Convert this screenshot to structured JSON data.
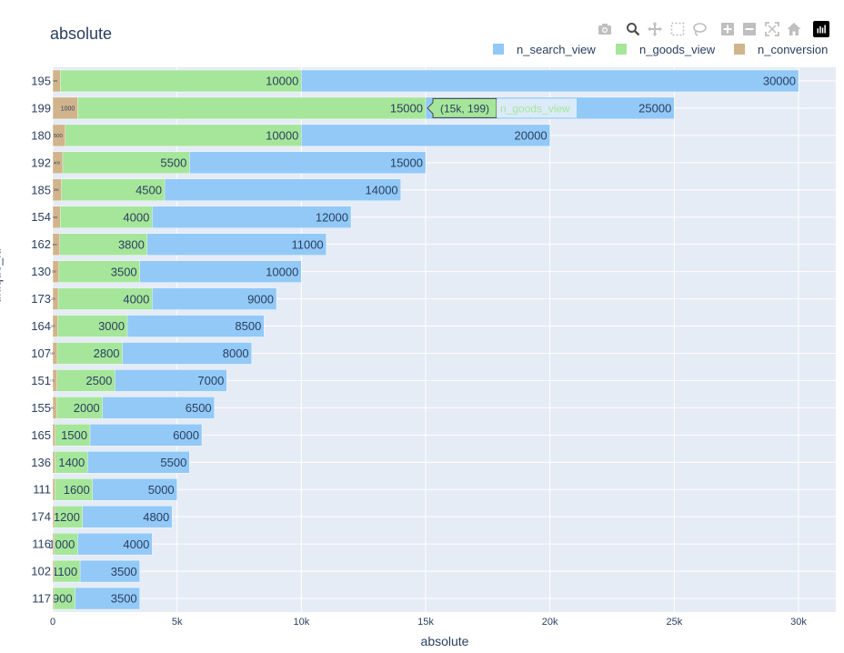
{
  "title": "absolute",
  "toolbar": {
    "icons": [
      "camera-icon",
      "zoom-icon",
      "pan-icon",
      "box-select-icon",
      "lasso-icon",
      "zoom-in-icon",
      "zoom-out-icon",
      "autoscale-icon",
      "reset-axes-icon",
      "plotly-logo-icon"
    ]
  },
  "legend": [
    {
      "name": "n_search_view",
      "color": "#92c9f7"
    },
    {
      "name": "n_goods_view",
      "color": "#a6e69a"
    },
    {
      "name": "n_conversion",
      "color": "#d2b48c"
    }
  ],
  "tooltip": {
    "text": "(15k, 199)",
    "series": "n_goods_view"
  },
  "chart_data": {
    "type": "bar",
    "orientation": "horizontal",
    "barmode": "overlay",
    "title": "absolute",
    "xlabel": "absolute",
    "ylabel": "unique_id",
    "xlim": [
      0,
      31500
    ],
    "xticks": [
      0,
      5000,
      10000,
      15000,
      20000,
      25000,
      30000
    ],
    "xticklabels": [
      "0",
      "5k",
      "10k",
      "15k",
      "20k",
      "25k",
      "30k"
    ],
    "categories": [
      "195",
      "199",
      "180",
      "192",
      "185",
      "154",
      "162",
      "130",
      "173",
      "164",
      "107",
      "151",
      "155",
      "165",
      "136",
      "111",
      "174",
      "116",
      "102",
      "117"
    ],
    "series": [
      {
        "name": "n_search_view",
        "color": "#92c9f7",
        "values": [
          30000,
          25000,
          20000,
          15000,
          14000,
          12000,
          11000,
          10000,
          9000,
          8500,
          8000,
          7000,
          6500,
          6000,
          5500,
          5000,
          4800,
          4000,
          3500,
          3500
        ]
      },
      {
        "name": "n_goods_view",
        "color": "#a6e69a",
        "values": [
          10000,
          15000,
          10000,
          5500,
          4500,
          4000,
          3800,
          3500,
          4000,
          3000,
          2800,
          2500,
          2000,
          1500,
          1400,
          1600,
          1200,
          1000,
          1100,
          900
        ]
      },
      {
        "name": "n_conversion",
        "color": "#d2b48c",
        "values": [
          300,
          1000,
          500,
          400,
          350,
          300,
          280,
          250,
          220,
          200,
          180,
          170,
          150,
          100,
          90,
          80,
          70,
          60,
          60,
          40
        ]
      }
    ],
    "grid": true,
    "legend_position": "top-right"
  }
}
